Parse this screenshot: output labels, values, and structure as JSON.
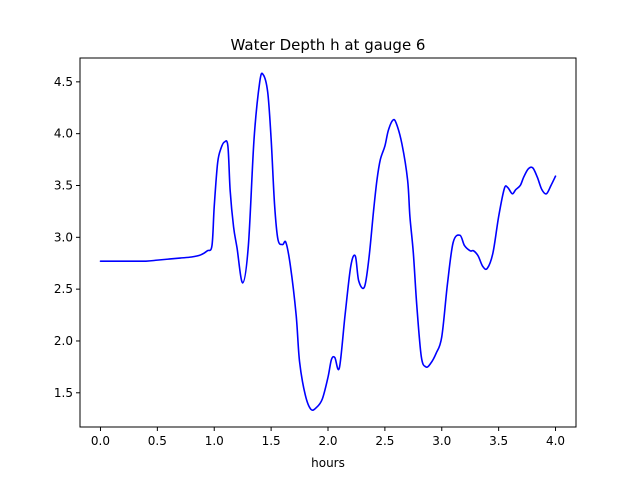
{
  "chart_data": {
    "type": "line",
    "title": "Water Depth h at gauge 6",
    "xlabel": "hours",
    "ylabel": "",
    "xlim": [
      -0.18,
      4.18
    ],
    "ylim": [
      1.17,
      4.73
    ],
    "xticks": [
      0.0,
      0.5,
      1.0,
      1.5,
      2.0,
      2.5,
      3.0,
      3.5,
      4.0
    ],
    "xtick_labels": [
      "0.0",
      "0.5",
      "1.0",
      "1.5",
      "2.0",
      "2.5",
      "3.0",
      "3.5",
      "4.0"
    ],
    "yticks": [
      1.5,
      2.0,
      2.5,
      3.0,
      3.5,
      4.0,
      4.5
    ],
    "ytick_labels": [
      "1.5",
      "2.0",
      "2.5",
      "3.0",
      "3.5",
      "4.0",
      "4.5"
    ],
    "grid": false,
    "color": "#0000ff",
    "series": [
      {
        "x": [
          0.0,
          0.2,
          0.4,
          0.5,
          0.6,
          0.7,
          0.8,
          0.88,
          0.94,
          0.98,
          1.0,
          1.03,
          1.06,
          1.09,
          1.12,
          1.14,
          1.17,
          1.2,
          1.25,
          1.3,
          1.35,
          1.4,
          1.43,
          1.47,
          1.5,
          1.53,
          1.56,
          1.6,
          1.63,
          1.67,
          1.72,
          1.75,
          1.8,
          1.85,
          1.9,
          1.95,
          2.0,
          2.03,
          2.06,
          2.1,
          2.15,
          2.2,
          2.24,
          2.27,
          2.32,
          2.36,
          2.4,
          2.43,
          2.46,
          2.5,
          2.53,
          2.57,
          2.6,
          2.65,
          2.7,
          2.72,
          2.75,
          2.78,
          2.82,
          2.86,
          2.9,
          2.95,
          3.0,
          3.05,
          3.1,
          3.16,
          3.2,
          3.25,
          3.28,
          3.32,
          3.36,
          3.4,
          3.45,
          3.5,
          3.55,
          3.58,
          3.62,
          3.65,
          3.69,
          3.72,
          3.76,
          3.8,
          3.84,
          3.88,
          3.92,
          3.96,
          4.0
        ],
        "y": [
          2.77,
          2.77,
          2.77,
          2.78,
          2.79,
          2.8,
          2.81,
          2.83,
          2.87,
          2.92,
          3.3,
          3.72,
          3.86,
          3.92,
          3.88,
          3.45,
          3.1,
          2.9,
          2.56,
          2.92,
          3.95,
          4.5,
          4.57,
          4.4,
          3.95,
          3.32,
          2.98,
          2.93,
          2.95,
          2.72,
          2.25,
          1.8,
          1.48,
          1.34,
          1.36,
          1.44,
          1.65,
          1.82,
          1.84,
          1.74,
          2.25,
          2.72,
          2.82,
          2.58,
          2.52,
          2.8,
          3.25,
          3.55,
          3.75,
          3.88,
          4.03,
          4.13,
          4.1,
          3.9,
          3.55,
          3.2,
          2.85,
          2.35,
          1.85,
          1.75,
          1.78,
          1.88,
          2.04,
          2.55,
          2.95,
          3.02,
          2.92,
          2.87,
          2.87,
          2.82,
          2.72,
          2.7,
          2.85,
          3.2,
          3.47,
          3.48,
          3.42,
          3.46,
          3.5,
          3.58,
          3.66,
          3.67,
          3.58,
          3.46,
          3.42,
          3.5,
          3.59
        ]
      }
    ]
  }
}
